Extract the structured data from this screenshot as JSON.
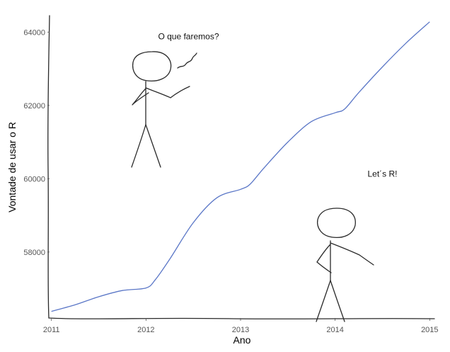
{
  "chart_data": {
    "type": "line",
    "title": "",
    "xlabel": "Ano",
    "ylabel": "Vontade de usar o R",
    "xlim": [
      2010.98,
      2015.05
    ],
    "ylim": [
      56200,
      64450
    ],
    "x_ticks": [
      2011,
      2012,
      2013,
      2014,
      2015
    ],
    "y_ticks": [
      58000,
      60000,
      62000,
      64000
    ],
    "grid": false,
    "series": [
      {
        "color": "#5b77c7",
        "x": [
          2011.0,
          2011.25,
          2011.5,
          2011.75,
          2012.0,
          2012.1,
          2012.25,
          2012.5,
          2012.75,
          2013.0,
          2013.1,
          2013.25,
          2013.5,
          2013.75,
          2014.0,
          2014.1,
          2014.25,
          2014.5,
          2014.75,
          2015.0
        ],
        "y": [
          56380,
          56560,
          56780,
          56950,
          57020,
          57250,
          57800,
          58800,
          59480,
          59710,
          59850,
          60300,
          61000,
          61560,
          61800,
          61900,
          62350,
          63050,
          63700,
          64280
        ]
      }
    ],
    "annotations": [
      {
        "text": "O que faremos?",
        "x": 2012.45,
        "y": 63800
      },
      {
        "text": "Let´s R!",
        "x": 2014.5,
        "y": 60050
      }
    ],
    "figures": [
      {
        "name": "stick-figure-thinking"
      },
      {
        "name": "stick-figure-cheering"
      }
    ]
  }
}
